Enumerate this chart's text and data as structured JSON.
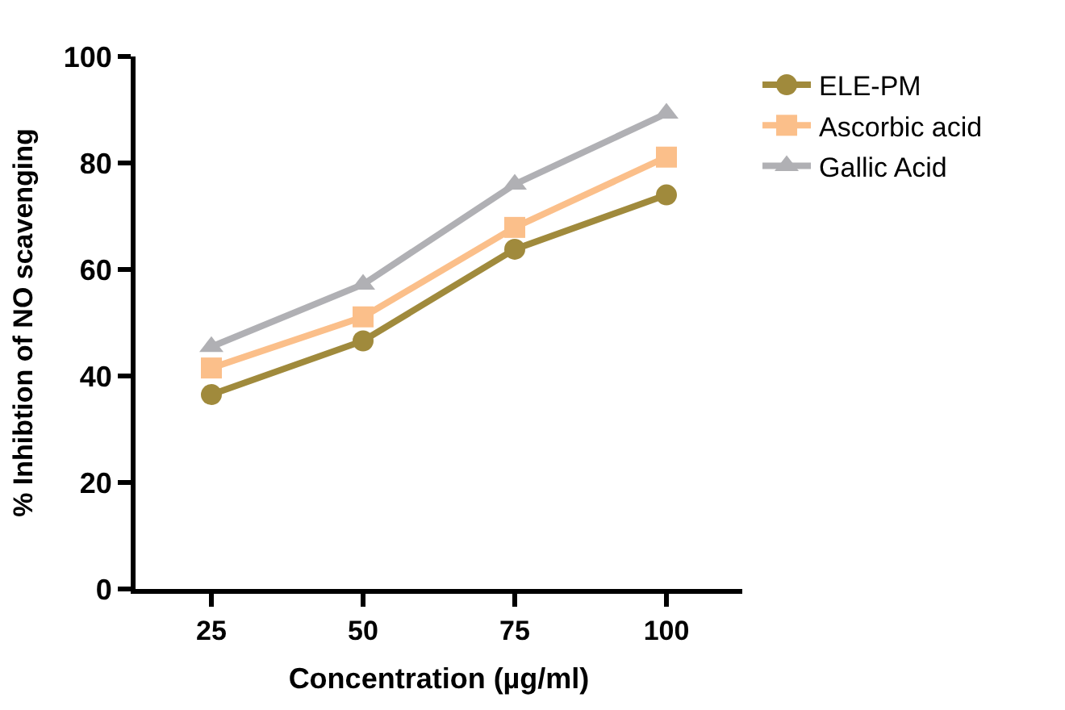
{
  "chart_data": {
    "type": "line",
    "xlabel": "Concentration (µg/ml)",
    "ylabel": "% Inhibtion of NO scavenging",
    "categories": [
      "25",
      "50",
      "75",
      "100"
    ],
    "series": [
      {
        "name": "ELE-PM",
        "color": "#a08a3c",
        "marker": "circle",
        "values": [
          36.5,
          46.6,
          63.8,
          74.0
        ]
      },
      {
        "name": "Ascorbic acid",
        "color": "#fbbf8a",
        "marker": "square",
        "values": [
          41.5,
          51.1,
          67.9,
          81.1
        ]
      },
      {
        "name": "Gallic Acid",
        "color": "#b0b0b4",
        "marker": "triangle",
        "values": [
          45.5,
          57.2,
          76.0,
          89.3
        ]
      }
    ],
    "ylim": [
      0,
      100
    ],
    "yticks": [
      0,
      20,
      40,
      60,
      80,
      100
    ],
    "legend": "top right",
    "line_style": "solid"
  }
}
